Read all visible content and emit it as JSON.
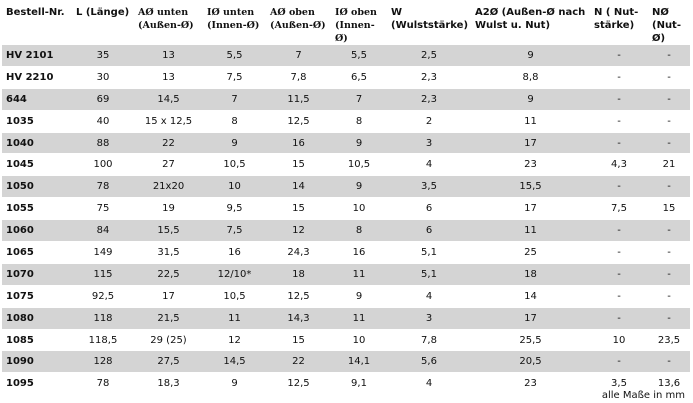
{
  "headers": [
    {
      "text": "Bestell-Nr.",
      "serif": false
    },
    {
      "text": "L (Länge)",
      "serif": false
    },
    {
      "text": "AØ unten (Außen-Ø)",
      "serif": true
    },
    {
      "text": "IØ unten (Innen-Ø)",
      "serif": true
    },
    {
      "text": "AØ oben (Außen-Ø)",
      "serif": true
    },
    {
      "text": "IØ oben (Innen-Ø)",
      "serif": true
    },
    {
      "text": "W (Wulststärke)",
      "serif": false
    },
    {
      "text": "A2Ø (Außen-Ø nach Wulst u. Nut)",
      "serif": false
    },
    {
      "text": "N ( Nut-stärke)",
      "serif": false
    },
    {
      "text": "NØ (Nut-Ø)",
      "serif": false
    }
  ],
  "rows": [
    [
      "HV 2101",
      "35",
      "13",
      "5,5",
      "7",
      "5,5",
      "2,5",
      "9",
      "-",
      "-"
    ],
    [
      "HV 2210",
      "30",
      "13",
      "7,5",
      "7,8",
      "6,5",
      "2,3",
      "8,8",
      "-",
      "-"
    ],
    [
      "644",
      "69",
      "14,5",
      "7",
      "11,5",
      "7",
      "2,3",
      "9",
      "-",
      "-"
    ],
    [
      "1035",
      "40",
      "15 x 12,5",
      "8",
      "12,5",
      "8",
      "2",
      "11",
      "-",
      "-"
    ],
    [
      "1040",
      "88",
      "22",
      "9",
      "16",
      "9",
      "3",
      "17",
      "-",
      "-"
    ],
    [
      "1045",
      "100",
      "27",
      "10,5",
      "15",
      "10,5",
      "4",
      "23",
      "4,3",
      "21"
    ],
    [
      "1050",
      "78",
      "21x20",
      "10",
      "14",
      "9",
      "3,5",
      "15,5",
      "-",
      "-"
    ],
    [
      "1055",
      "75",
      "19",
      "9,5",
      "15",
      "10",
      "6",
      "17",
      "7,5",
      "15"
    ],
    [
      "1060",
      "84",
      "15,5",
      "7,5",
      "12",
      "8",
      "6",
      "11",
      "-",
      "-"
    ],
    [
      "1065",
      "149",
      "31,5",
      "16",
      "24,3",
      "16",
      "5,1",
      "25",
      "-",
      "-"
    ],
    [
      "1070",
      "115",
      "22,5",
      "12/10*",
      "18",
      "11",
      "5,1",
      "18",
      "-",
      "-"
    ],
    [
      "1075",
      "92,5",
      "17",
      "10,5",
      "12,5",
      "9",
      "4",
      "14",
      "-",
      "-"
    ],
    [
      "1080",
      "118",
      "21,5",
      "11",
      "14,3",
      "11",
      "3",
      "17",
      "-",
      "-"
    ],
    [
      "1085",
      "118,5",
      "29 (25)",
      "12",
      "15",
      "10",
      "7,8",
      "25,5",
      "10",
      "23,5"
    ],
    [
      "1090",
      "128",
      "27,5",
      "14,5",
      "22",
      "14,1",
      "5,6",
      "20,5",
      "-",
      "-"
    ],
    [
      "1095",
      "78",
      "18,3",
      "9",
      "12,5",
      "9,1",
      "4",
      "23",
      "3,5",
      "13,6"
    ]
  ],
  "footer": {
    "note": "alle Maße in mm"
  }
}
